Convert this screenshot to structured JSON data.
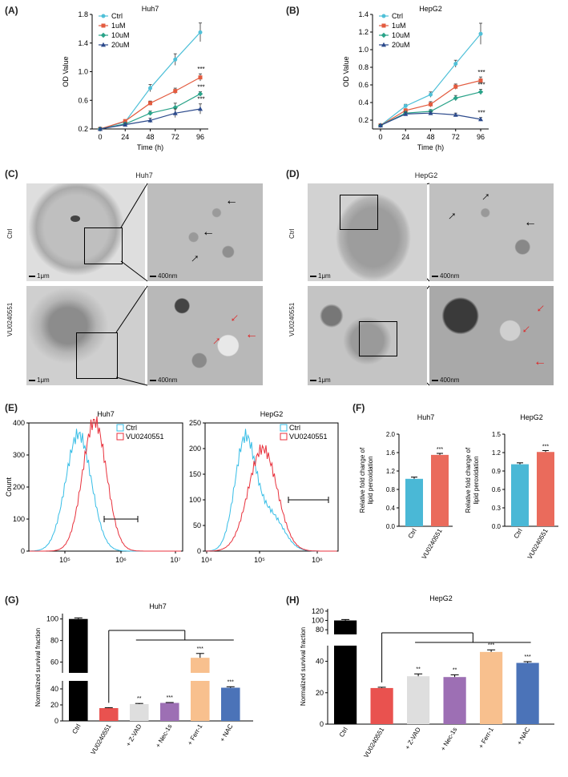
{
  "panels": {
    "A": {
      "label": "(A)",
      "title": "Huh7"
    },
    "B": {
      "label": "(B)",
      "title": "HepG2"
    },
    "C": {
      "label": "(C)",
      "title": "Huh7",
      "row1": "Ctrl",
      "row2": "VU0240551",
      "scale_low": "1μm",
      "scale_high": "400nm"
    },
    "D": {
      "label": "(D)",
      "title": "HepG2",
      "row1": "Ctrl",
      "row2": "VU0240551",
      "scale_low": "1μm",
      "scale_high": "400nm"
    },
    "E": {
      "label": "(E)"
    },
    "F": {
      "label": "(F)"
    },
    "G": {
      "label": "(G)",
      "title": "Huh7"
    },
    "H": {
      "label": "(H)",
      "title": "HepG2"
    }
  },
  "colors": {
    "ctrl": "#4fc0d8",
    "u1": "#e35b3f",
    "u10": "#2aa389",
    "u20": "#2c4a8c",
    "flowCtrl": "#36bde6",
    "flowDrug": "#e8313c",
    "barF_ctrl": "#4ab8d6",
    "barF_drug": "#ea6b5c"
  },
  "chart_data": [
    {
      "id": "A",
      "type": "line",
      "title": "Huh7",
      "xlabel": "Time (h)",
      "ylabel": "OD Value",
      "x": [
        0,
        24,
        48,
        72,
        96
      ],
      "ylim": [
        0.2,
        1.8
      ],
      "yticks": [
        "0.2",
        "0.6",
        "1.0",
        "1.4",
        "1.8"
      ],
      "series": [
        {
          "name": "Ctrl",
          "values": [
            0.2,
            0.3,
            0.77,
            1.17,
            1.55
          ],
          "err": [
            0.02,
            0.02,
            0.05,
            0.08,
            0.13
          ]
        },
        {
          "name": "1uM",
          "values": [
            0.2,
            0.31,
            0.56,
            0.73,
            0.92
          ],
          "err": [
            0.02,
            0.02,
            0.03,
            0.04,
            0.05
          ]
        },
        {
          "name": "10uM",
          "values": [
            0.2,
            0.27,
            0.42,
            0.5,
            0.69
          ],
          "err": [
            0.02,
            0.02,
            0.03,
            0.06,
            0.03
          ]
        },
        {
          "name": "20uM",
          "values": [
            0.2,
            0.26,
            0.32,
            0.42,
            0.48
          ],
          "err": [
            0.02,
            0.02,
            0.03,
            0.06,
            0.07
          ]
        }
      ],
      "annotations": [
        "***",
        "***",
        "***"
      ]
    },
    {
      "id": "B",
      "type": "line",
      "title": "HepG2",
      "xlabel": "Time (h)",
      "ylabel": "OD Value",
      "x": [
        0,
        24,
        48,
        72,
        96
      ],
      "ylim": [
        0.1,
        1.4
      ],
      "yticks": [
        "0.2",
        "0.4",
        "0.6",
        "0.8",
        "1.0",
        "1.2",
        "1.4"
      ],
      "series": [
        {
          "name": "Ctrl",
          "values": [
            0.14,
            0.36,
            0.49,
            0.84,
            1.18
          ],
          "err": [
            0.01,
            0.02,
            0.03,
            0.04,
            0.12
          ]
        },
        {
          "name": "1uM",
          "values": [
            0.14,
            0.31,
            0.38,
            0.58,
            0.65
          ],
          "err": [
            0.01,
            0.02,
            0.03,
            0.03,
            0.04
          ]
        },
        {
          "name": "10uM",
          "values": [
            0.14,
            0.28,
            0.3,
            0.45,
            0.52
          ],
          "err": [
            0.01,
            0.02,
            0.02,
            0.03,
            0.03
          ]
        },
        {
          "name": "20uM",
          "values": [
            0.14,
            0.27,
            0.28,
            0.26,
            0.21
          ],
          "err": [
            0.01,
            0.02,
            0.02,
            0.02,
            0.02
          ]
        }
      ],
      "annotations": [
        "***",
        "***",
        "***"
      ]
    },
    {
      "id": "E1",
      "type": "line",
      "title": "Huh7",
      "ylabel": "Count",
      "ylim": [
        0,
        400
      ],
      "yticks": [
        "0",
        "100",
        "200",
        "300",
        "400"
      ],
      "xticks": [
        "10⁵",
        "10⁶",
        "10⁷"
      ],
      "legend": [
        "Ctrl",
        "VU0240551"
      ]
    },
    {
      "id": "E2",
      "type": "line",
      "title": "HepG2",
      "ylim": [
        0,
        250
      ],
      "yticks": [
        "0",
        "50",
        "100",
        "150",
        "200",
        "250"
      ],
      "xticks": [
        "10⁴",
        "10⁵",
        "10⁶"
      ],
      "legend": [
        "Ctrl",
        "VU0240551"
      ]
    },
    {
      "id": "F1",
      "type": "bar",
      "title": "Huh7",
      "ylabel": "Relative fold change of lipid peroxidation",
      "categories": [
        "Ctrl",
        "VU0240551"
      ],
      "values": [
        1.03,
        1.55
      ],
      "err": [
        0.02,
        0.015
      ],
      "ylim": [
        0,
        2.0
      ],
      "yticks": [
        "0.0",
        "0.4",
        "0.8",
        "1.2",
        "1.6",
        "2.0"
      ],
      "annotation": "***"
    },
    {
      "id": "F2",
      "type": "bar",
      "title": "HepG2",
      "ylabel": "Relative fold change of lipid peroxidation",
      "categories": [
        "Ctrl",
        "VU0240551"
      ],
      "values": [
        1.01,
        1.21
      ],
      "err": [
        0.01,
        0.01
      ],
      "ylim": [
        0,
        1.5
      ],
      "yticks": [
        "0.0",
        "0.3",
        "0.6",
        "0.9",
        "1.2",
        "1.5"
      ],
      "annotation": "***"
    },
    {
      "id": "G",
      "type": "bar",
      "title": "Huh7",
      "ylabel": "Normalized survival fraction",
      "categories": [
        "Ctrl",
        "VU0240551",
        "+ Z-VAD",
        "+ Nec-1s",
        "+ Ferr-1",
        "+ NAC"
      ],
      "values": [
        100,
        16,
        21,
        22.5,
        64,
        41.5
      ],
      "err": [
        1,
        0.6,
        0.8,
        0.5,
        4,
        1.2
      ],
      "stars": [
        "",
        "",
        "**",
        "***",
        "***",
        "***"
      ],
      "yticks": [
        "0",
        "20",
        "40",
        "60",
        "80",
        "100"
      ]
    },
    {
      "id": "H",
      "type": "bar",
      "title": "HepG2",
      "ylabel": "Normalized survival fraction",
      "categories": [
        "Ctrl",
        "VU0240551",
        "+ Z-VAD",
        "+ Nec-1s",
        "+ Ferr-1",
        "+ NAC"
      ],
      "values": [
        100,
        23,
        30.5,
        30,
        46,
        39
      ],
      "err": [
        2,
        0.5,
        1.5,
        1.4,
        1.3,
        0.8
      ],
      "stars": [
        "",
        "",
        "**",
        "**",
        "***",
        "***"
      ],
      "yticks": [
        "0",
        "20",
        "40",
        "80",
        "100",
        "120"
      ]
    }
  ]
}
